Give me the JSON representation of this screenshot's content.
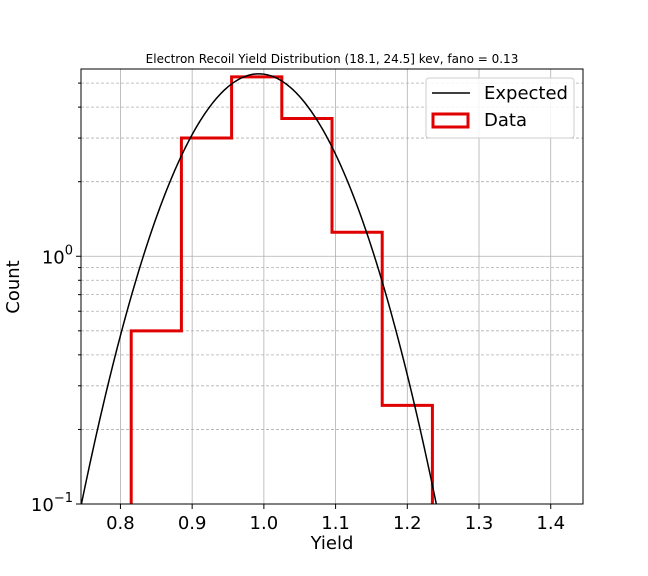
{
  "chart_data": {
    "type": "histogram",
    "title": "Electron Recoil Yield Distribution (18.1, 24.5] kev, fano = 0.13",
    "xlabel": "Yield",
    "ylabel": "Count",
    "xlim": [
      0.745,
      1.445
    ],
    "ylim": [
      0.1,
      5.7
    ],
    "yscale": "log",
    "grid": true,
    "legend_position": "top-right",
    "x_ticks": [
      {
        "value": 0.8,
        "label": "0.8"
      },
      {
        "value": 0.9,
        "label": "0.9"
      },
      {
        "value": 1.0,
        "label": "1.0"
      },
      {
        "value": 1.1,
        "label": "1.1"
      },
      {
        "value": 1.2,
        "label": "1.2"
      },
      {
        "value": 1.3,
        "label": "1.3"
      },
      {
        "value": 1.4,
        "label": "1.4"
      }
    ],
    "y_ticks": [
      {
        "value": 0.1,
        "base": "10",
        "exp": "−1"
      },
      {
        "value": 1,
        "base": "10",
        "exp": "0"
      }
    ],
    "series": [
      {
        "name": "Expected",
        "kind": "line",
        "color": "#000000",
        "mean": 0.993,
        "sigma": 0.0875,
        "peak": 5.45
      },
      {
        "name": "Data",
        "kind": "step",
        "color": "#e00000",
        "bin_edges": [
          0.815,
          0.885,
          0.955,
          1.025,
          1.095,
          1.165,
          1.235
        ],
        "counts": [
          0.5,
          3.0,
          5.3,
          3.6,
          1.25,
          0.25
        ]
      }
    ]
  }
}
